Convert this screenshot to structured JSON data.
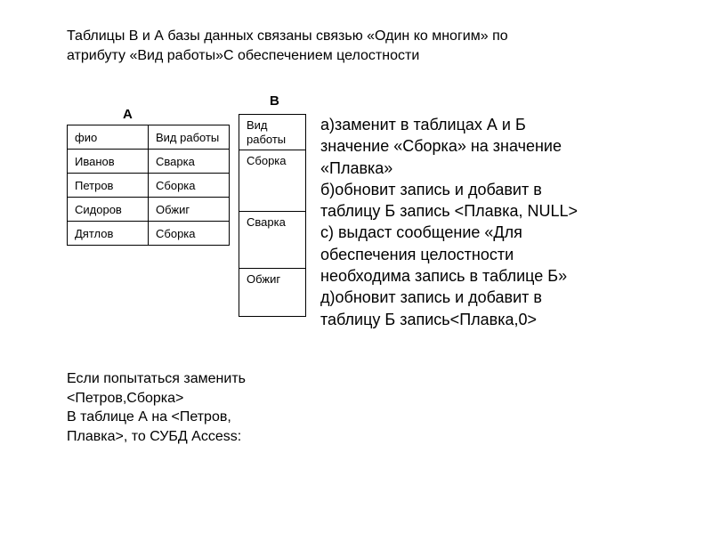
{
  "intro": {
    "line1": "Таблицы В и А базы данных связаны связью «Один ко многим» по",
    "line2": "атрибуту «Вид работы»С обеспечением целостности"
  },
  "labels": {
    "a": "А",
    "b": "В"
  },
  "tableA": {
    "columns": [
      "фио",
      "Вид работы"
    ],
    "rows": [
      [
        "Иванов",
        "Сварка"
      ],
      [
        "Петров",
        "Сборка"
      ],
      [
        "Сидоров",
        "Обжиг"
      ],
      [
        "Дятлов",
        "Сборка"
      ]
    ]
  },
  "tableB": {
    "header": "Вид работы",
    "rows": [
      "Сборка",
      "Сварка",
      "Обжиг"
    ]
  },
  "answers": {
    "a1": "а)заменит в таблицах А и Б",
    "a2": "значение «Сборка» на значение",
    "a3": "«Плавка»",
    "b1": "б)обновит запись и добавит в",
    "b2": "таблицу Б запись <Плавка, NULL>",
    "c1": "с) выдаст сообщение «Для",
    "c2": "обеспечения целостности",
    "c3": "необходима запись в таблице Б»",
    "d1": "д)обновит запись и добавит в",
    "d2": "таблицу Б запись<Плавка,0>"
  },
  "bottom": {
    "l1": "Если попытаться заменить",
    "l2": "<Петров,Сборка>",
    "l3": "В таблице А на <Петров,",
    "l4": "Плавка>, то СУБД Access:"
  },
  "style": {
    "font_family": "Arial, sans-serif",
    "text_color": "#000000",
    "background": "#ffffff",
    "border_color": "#000000",
    "intro_fontsize": 16,
    "answers_fontsize": 18,
    "bottom_fontsize": 16,
    "table_fontsize": 13,
    "label_fontsize": 15
  }
}
